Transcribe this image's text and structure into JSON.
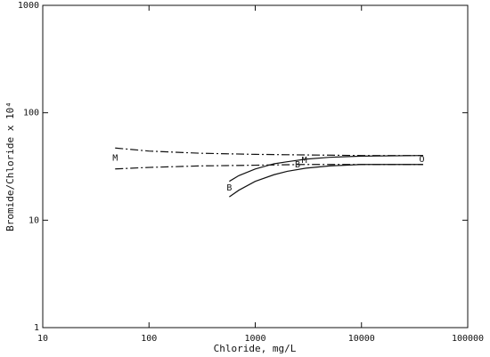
{
  "chart_data": {
    "type": "line",
    "x_label": "Chloride, mg/L",
    "y_label": "Bromide/Chloride x 10⁴",
    "x_log": true,
    "y_log": true,
    "xlim": [
      10,
      100000
    ],
    "ylim": [
      1,
      1000
    ],
    "xticks": [
      10,
      100,
      1000,
      10000,
      100000
    ],
    "yticks": [
      1,
      10,
      100,
      1000
    ],
    "series": [
      {
        "color": "#111111",
        "dash": "dashdot",
        "x": [
          48,
          100,
          300,
          1000,
          3000,
          10000,
          38000
        ],
        "values": [
          47,
          44,
          42,
          41,
          40.5,
          40,
          40
        ]
      },
      {
        "color": "#111111",
        "dash": "dashdot",
        "x": [
          48,
          100,
          300,
          1000,
          3000,
          10000,
          38000
        ],
        "values": [
          30,
          31,
          32,
          32.5,
          33,
          33,
          33
        ]
      },
      {
        "color": "#111111",
        "dash": "solid",
        "x": [
          570,
          700,
          1000,
          1500,
          2000,
          3000,
          5000,
          10000,
          38000
        ],
        "values": [
          23,
          26,
          30,
          33.5,
          35,
          37,
          38.5,
          39.5,
          40
        ]
      },
      {
        "color": "#111111",
        "dash": "solid",
        "x": [
          570,
          700,
          1000,
          1500,
          2000,
          3000,
          5000,
          10000,
          38000
        ],
        "values": [
          16.5,
          19,
          23,
          26.5,
          28.5,
          30.5,
          32,
          33,
          33
        ]
      }
    ],
    "annotations": [
      {
        "text": "M",
        "x": 48,
        "y": 38
      },
      {
        "text": "M",
        "x": 2900,
        "y": 36
      },
      {
        "text": "B",
        "x": 2500,
        "y": 33
      },
      {
        "text": "B",
        "x": 570,
        "y": 20
      },
      {
        "text": "O",
        "x": 37000,
        "y": 37
      }
    ]
  }
}
